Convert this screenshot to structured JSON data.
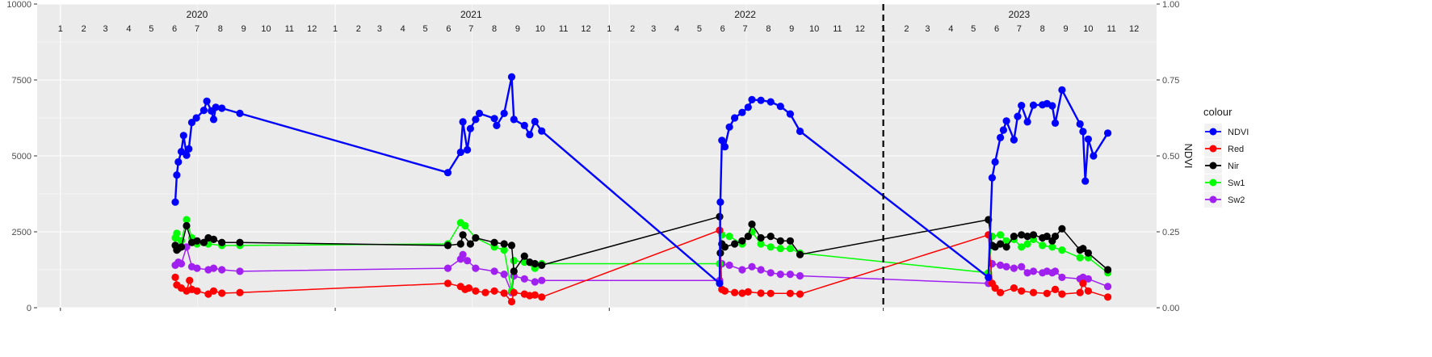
{
  "chart_data": {
    "type": "line",
    "title": "",
    "x_axis": {
      "type": "date",
      "range": [
        "2019-12-01",
        "2023-12-31"
      ],
      "ticks": [
        "2020-01-01",
        "2021-01-01",
        "2022-01-01",
        "2023-01-01"
      ]
    },
    "year_labels": [
      {
        "label": "2020",
        "date": "2020-07-01"
      },
      {
        "label": "2021",
        "date": "2021-07-01"
      },
      {
        "label": "2022",
        "date": "2022-07-01"
      },
      {
        "label": "2023",
        "date": "2023-07-01"
      }
    ],
    "month_labels": [
      "1",
      "2",
      "3",
      "4",
      "5",
      "6",
      "7",
      "8",
      "9",
      "10",
      "11",
      "12"
    ],
    "y_left": {
      "range": [
        0,
        10000
      ],
      "ticks": [
        "0",
        "2500",
        "5000",
        "7500",
        "10000"
      ]
    },
    "y_right": {
      "label": "NDVI",
      "range": [
        0,
        1
      ],
      "ticks": [
        "0.00",
        "0.25",
        "0.50",
        "0.75",
        "1.00"
      ]
    },
    "vline": {
      "date": "2023-01-01",
      "style": "dashed"
    },
    "legend": {
      "title": "colour",
      "position": "right"
    },
    "series": [
      {
        "name": "NDVI",
        "color": "#0000FF",
        "axis": "right",
        "points": [
          [
            "2020-06-02",
            0.348
          ],
          [
            "2020-06-04",
            0.437
          ],
          [
            "2020-06-06",
            0.48
          ],
          [
            "2020-06-10",
            0.514
          ],
          [
            "2020-06-13",
            0.567
          ],
          [
            "2020-06-17",
            0.502
          ],
          [
            "2020-06-20",
            0.523
          ],
          [
            "2020-06-24",
            0.61
          ],
          [
            "2020-06-30",
            0.625
          ],
          [
            "2020-07-10",
            0.65
          ],
          [
            "2020-07-14",
            0.68
          ],
          [
            "2020-07-20",
            0.648
          ],
          [
            "2020-07-23",
            0.62
          ],
          [
            "2020-07-26",
            0.66
          ],
          [
            "2020-08-03",
            0.657
          ],
          [
            "2020-08-27",
            0.64
          ],
          [
            "2021-05-31",
            0.445
          ],
          [
            "2021-06-17",
            0.512
          ],
          [
            "2021-06-20",
            0.612
          ],
          [
            "2021-06-26",
            0.52
          ],
          [
            "2021-06-30",
            0.59
          ],
          [
            "2021-07-07",
            0.62
          ],
          [
            "2021-07-12",
            0.64
          ],
          [
            "2021-08-01",
            0.623
          ],
          [
            "2021-08-04",
            0.6
          ],
          [
            "2021-08-14",
            0.64
          ],
          [
            "2021-08-24",
            0.76
          ],
          [
            "2021-08-27",
            0.62
          ],
          [
            "2021-09-10",
            0.6
          ],
          [
            "2021-09-17",
            0.57
          ],
          [
            "2021-09-24",
            0.613
          ],
          [
            "2021-10-03",
            0.582
          ],
          [
            "2022-05-28",
            0.08
          ],
          [
            "2022-05-29",
            0.348
          ],
          [
            "2022-05-31",
            0.551
          ],
          [
            "2022-06-04",
            0.53
          ],
          [
            "2022-06-10",
            0.595
          ],
          [
            "2022-06-17",
            0.625
          ],
          [
            "2022-06-27",
            0.643
          ],
          [
            "2022-07-05",
            0.66
          ],
          [
            "2022-07-10",
            0.685
          ],
          [
            "2022-07-22",
            0.683
          ],
          [
            "2022-08-04",
            0.678
          ],
          [
            "2022-08-17",
            0.663
          ],
          [
            "2022-08-30",
            0.638
          ],
          [
            "2022-09-12",
            0.581
          ],
          [
            "2023-05-21",
            0.1
          ],
          [
            "2023-05-26",
            0.428
          ],
          [
            "2023-05-30",
            0.48
          ],
          [
            "2023-06-06",
            0.56
          ],
          [
            "2023-06-10",
            0.585
          ],
          [
            "2023-06-14",
            0.615
          ],
          [
            "2023-06-24",
            0.553
          ],
          [
            "2023-06-29",
            0.63
          ],
          [
            "2023-07-04",
            0.666
          ],
          [
            "2023-07-12",
            0.612
          ],
          [
            "2023-07-20",
            0.667
          ],
          [
            "2023-08-01",
            0.668
          ],
          [
            "2023-08-07",
            0.672
          ],
          [
            "2023-08-14",
            0.665
          ],
          [
            "2023-08-18",
            0.608
          ],
          [
            "2023-08-27",
            0.717
          ],
          [
            "2023-09-20",
            0.605
          ],
          [
            "2023-09-24",
            0.58
          ],
          [
            "2023-09-27",
            0.417
          ],
          [
            "2023-10-01",
            0.555
          ],
          [
            "2023-10-08",
            0.5
          ],
          [
            "2023-10-27",
            0.575
          ]
        ]
      },
      {
        "name": "Red",
        "color": "#FF0000",
        "axis": "left",
        "points": [
          [
            "2020-06-02",
            1000
          ],
          [
            "2020-06-04",
            750
          ],
          [
            "2020-06-10",
            650
          ],
          [
            "2020-06-17",
            550
          ],
          [
            "2020-06-21",
            900
          ],
          [
            "2020-06-24",
            600
          ],
          [
            "2020-07-01",
            550
          ],
          [
            "2020-07-16",
            450
          ],
          [
            "2020-07-23",
            550
          ],
          [
            "2020-08-03",
            480
          ],
          [
            "2020-08-27",
            500
          ],
          [
            "2021-05-31",
            800
          ],
          [
            "2021-06-17",
            700
          ],
          [
            "2021-06-23",
            600
          ],
          [
            "2021-06-28",
            650
          ],
          [
            "2021-07-07",
            550
          ],
          [
            "2021-07-20",
            500
          ],
          [
            "2021-08-01",
            550
          ],
          [
            "2021-08-14",
            480
          ],
          [
            "2021-08-24",
            200
          ],
          [
            "2021-08-27",
            500
          ],
          [
            "2021-09-10",
            450
          ],
          [
            "2021-09-17",
            400
          ],
          [
            "2021-09-24",
            420
          ],
          [
            "2021-10-03",
            350
          ],
          [
            "2022-05-28",
            2550
          ],
          [
            "2022-05-31",
            600
          ],
          [
            "2022-06-04",
            550
          ],
          [
            "2022-06-17",
            500
          ],
          [
            "2022-06-27",
            480
          ],
          [
            "2022-07-05",
            520
          ],
          [
            "2022-07-22",
            480
          ],
          [
            "2022-08-04",
            470
          ],
          [
            "2022-08-30",
            470
          ],
          [
            "2022-09-12",
            450
          ],
          [
            "2023-05-21",
            2400
          ],
          [
            "2023-05-26",
            800
          ],
          [
            "2023-05-30",
            650
          ],
          [
            "2023-06-06",
            500
          ],
          [
            "2023-06-24",
            650
          ],
          [
            "2023-07-04",
            550
          ],
          [
            "2023-07-20",
            500
          ],
          [
            "2023-08-07",
            470
          ],
          [
            "2023-08-18",
            600
          ],
          [
            "2023-08-27",
            450
          ],
          [
            "2023-09-20",
            500
          ],
          [
            "2023-09-24",
            800
          ],
          [
            "2023-10-01",
            550
          ],
          [
            "2023-10-27",
            350
          ]
        ]
      },
      {
        "name": "Nir",
        "color": "#000000",
        "axis": "left",
        "points": [
          [
            "2020-06-02",
            2050
          ],
          [
            "2020-06-04",
            1900
          ],
          [
            "2020-06-06",
            1950
          ],
          [
            "2020-06-10",
            2000
          ],
          [
            "2020-06-17",
            2700
          ],
          [
            "2020-06-24",
            2150
          ],
          [
            "2020-07-01",
            2200
          ],
          [
            "2020-07-10",
            2150
          ],
          [
            "2020-07-16",
            2300
          ],
          [
            "2020-07-23",
            2250
          ],
          [
            "2020-08-03",
            2150
          ],
          [
            "2020-08-27",
            2150
          ],
          [
            "2021-05-31",
            2050
          ],
          [
            "2021-06-17",
            2100
          ],
          [
            "2021-06-20",
            2400
          ],
          [
            "2021-06-30",
            2100
          ],
          [
            "2021-07-07",
            2300
          ],
          [
            "2021-08-01",
            2150
          ],
          [
            "2021-08-14",
            2100
          ],
          [
            "2021-08-24",
            2050
          ],
          [
            "2021-08-27",
            1200
          ],
          [
            "2021-09-10",
            1700
          ],
          [
            "2021-09-17",
            1500
          ],
          [
            "2021-09-24",
            1450
          ],
          [
            "2021-10-03",
            1400
          ],
          [
            "2022-05-28",
            3000
          ],
          [
            "2022-05-29",
            1800
          ],
          [
            "2022-05-31",
            2100
          ],
          [
            "2022-06-04",
            2000
          ],
          [
            "2022-06-17",
            2100
          ],
          [
            "2022-06-27",
            2200
          ],
          [
            "2022-07-05",
            2350
          ],
          [
            "2022-07-10",
            2750
          ],
          [
            "2022-07-22",
            2300
          ],
          [
            "2022-08-04",
            2350
          ],
          [
            "2022-08-17",
            2200
          ],
          [
            "2022-08-30",
            2200
          ],
          [
            "2022-09-12",
            1750
          ],
          [
            "2023-05-21",
            2900
          ],
          [
            "2023-05-26",
            2050
          ],
          [
            "2023-05-30",
            2000
          ],
          [
            "2023-06-06",
            2100
          ],
          [
            "2023-06-14",
            2000
          ],
          [
            "2023-06-24",
            2350
          ],
          [
            "2023-07-04",
            2400
          ],
          [
            "2023-07-12",
            2350
          ],
          [
            "2023-07-20",
            2400
          ],
          [
            "2023-08-01",
            2300
          ],
          [
            "2023-08-07",
            2350
          ],
          [
            "2023-08-14",
            2200
          ],
          [
            "2023-08-18",
            2350
          ],
          [
            "2023-08-27",
            2600
          ],
          [
            "2023-09-20",
            1900
          ],
          [
            "2023-09-24",
            1950
          ],
          [
            "2023-10-01",
            1800
          ],
          [
            "2023-10-27",
            1250
          ]
        ]
      },
      {
        "name": "Sw1",
        "color": "#00FF00",
        "axis": "left",
        "points": [
          [
            "2020-06-02",
            2300
          ],
          [
            "2020-06-04",
            2450
          ],
          [
            "2020-06-10",
            2200
          ],
          [
            "2020-06-17",
            2900
          ],
          [
            "2020-06-24",
            2300
          ],
          [
            "2020-07-01",
            2100
          ],
          [
            "2020-07-16",
            2100
          ],
          [
            "2020-08-03",
            2050
          ],
          [
            "2020-08-27",
            2050
          ],
          [
            "2021-05-31",
            2100
          ],
          [
            "2021-06-17",
            2800
          ],
          [
            "2021-06-23",
            2700
          ],
          [
            "2021-07-07",
            2300
          ],
          [
            "2021-08-01",
            2000
          ],
          [
            "2021-08-14",
            1900
          ],
          [
            "2021-08-24",
            550
          ],
          [
            "2021-08-27",
            1550
          ],
          [
            "2021-09-10",
            1500
          ],
          [
            "2021-09-24",
            1300
          ],
          [
            "2021-10-03",
            1450
          ],
          [
            "2022-05-28",
            1450
          ],
          [
            "2022-05-31",
            2400
          ],
          [
            "2022-06-10",
            2350
          ],
          [
            "2022-06-27",
            2100
          ],
          [
            "2022-07-10",
            2500
          ],
          [
            "2022-07-22",
            2100
          ],
          [
            "2022-08-04",
            2000
          ],
          [
            "2022-08-17",
            1950
          ],
          [
            "2022-08-30",
            1950
          ],
          [
            "2022-09-12",
            1800
          ],
          [
            "2023-05-21",
            1150
          ],
          [
            "2023-05-26",
            2350
          ],
          [
            "2023-06-06",
            2400
          ],
          [
            "2023-06-14",
            2200
          ],
          [
            "2023-06-24",
            2250
          ],
          [
            "2023-07-04",
            2000
          ],
          [
            "2023-07-12",
            2100
          ],
          [
            "2023-07-20",
            2250
          ],
          [
            "2023-08-01",
            2050
          ],
          [
            "2023-08-14",
            2000
          ],
          [
            "2023-08-27",
            1900
          ],
          [
            "2023-09-20",
            1650
          ],
          [
            "2023-10-01",
            1650
          ],
          [
            "2023-10-27",
            1150
          ]
        ]
      },
      {
        "name": "Sw2",
        "color": "#A020F0",
        "axis": "left",
        "points": [
          [
            "2020-06-02",
            1400
          ],
          [
            "2020-06-06",
            1500
          ],
          [
            "2020-06-10",
            1450
          ],
          [
            "2020-06-17",
            2000
          ],
          [
            "2020-06-24",
            1350
          ],
          [
            "2020-07-01",
            1300
          ],
          [
            "2020-07-16",
            1250
          ],
          [
            "2020-07-23",
            1300
          ],
          [
            "2020-08-03",
            1250
          ],
          [
            "2020-08-27",
            1200
          ],
          [
            "2021-05-31",
            1300
          ],
          [
            "2021-06-17",
            1600
          ],
          [
            "2021-06-20",
            1750
          ],
          [
            "2021-06-26",
            1550
          ],
          [
            "2021-07-07",
            1300
          ],
          [
            "2021-08-01",
            1200
          ],
          [
            "2021-08-14",
            1100
          ],
          [
            "2021-08-24",
            500
          ],
          [
            "2021-08-27",
            1050
          ],
          [
            "2021-09-10",
            950
          ],
          [
            "2021-09-24",
            850
          ],
          [
            "2021-10-03",
            900
          ],
          [
            "2022-05-28",
            900
          ],
          [
            "2022-05-31",
            1450
          ],
          [
            "2022-06-10",
            1400
          ],
          [
            "2022-06-27",
            1250
          ],
          [
            "2022-07-10",
            1350
          ],
          [
            "2022-07-22",
            1250
          ],
          [
            "2022-08-04",
            1150
          ],
          [
            "2022-08-17",
            1100
          ],
          [
            "2022-08-30",
            1100
          ],
          [
            "2022-09-12",
            1050
          ],
          [
            "2023-05-21",
            800
          ],
          [
            "2023-05-26",
            1450
          ],
          [
            "2023-06-06",
            1400
          ],
          [
            "2023-06-14",
            1350
          ],
          [
            "2023-06-24",
            1300
          ],
          [
            "2023-07-04",
            1350
          ],
          [
            "2023-07-12",
            1150
          ],
          [
            "2023-07-20",
            1200
          ],
          [
            "2023-08-01",
            1150
          ],
          [
            "2023-08-07",
            1200
          ],
          [
            "2023-08-14",
            1150
          ],
          [
            "2023-08-18",
            1200
          ],
          [
            "2023-08-27",
            1000
          ],
          [
            "2023-09-20",
            950
          ],
          [
            "2023-09-24",
            1000
          ],
          [
            "2023-10-01",
            950
          ],
          [
            "2023-10-27",
            700
          ]
        ]
      }
    ]
  }
}
